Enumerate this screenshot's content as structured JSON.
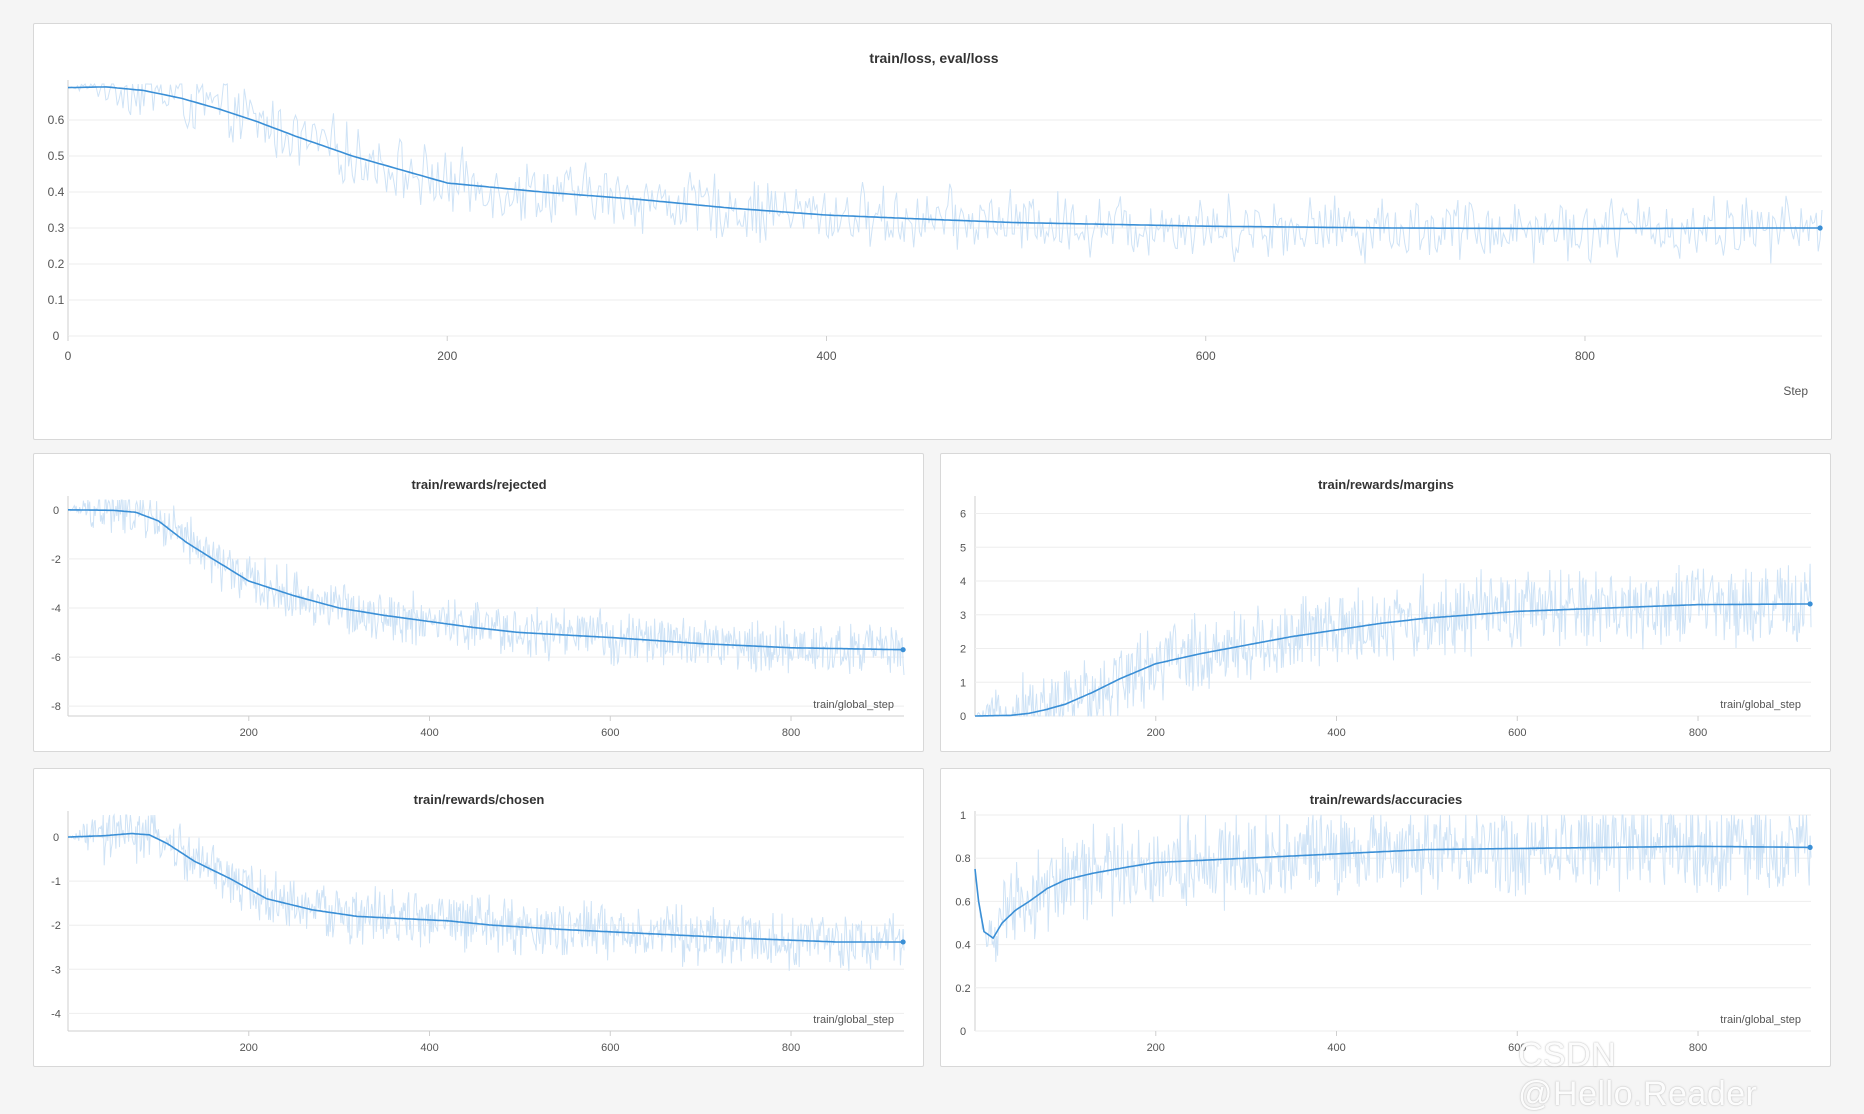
{
  "theme": {
    "smooth_color": "#3a8fd6",
    "raw_color": "#cfe3f6",
    "grid_color": "#eeeeee"
  },
  "watermark": "CSDN @Hello.Reader",
  "chart_data": [
    {
      "type": "line",
      "title": "train/loss, eval/loss",
      "xlabel": "Step",
      "ylabel": "",
      "xlim": [
        0,
        925
      ],
      "ylim": [
        0,
        0.7
      ],
      "xticks": [
        0,
        200,
        400,
        600,
        800
      ],
      "yticks": [
        0,
        0.1,
        0.2,
        0.3,
        0.4,
        0.5,
        0.6
      ],
      "ytick_labels": [
        "0",
        "0.1",
        "0.2",
        "0.3",
        "0.4",
        "0.5",
        "0.6"
      ],
      "noise": 0.075,
      "series": [
        {
          "role": "smoothed",
          "x": [
            0,
            20,
            40,
            60,
            80,
            100,
            120,
            150,
            180,
            200,
            250,
            300,
            350,
            400,
            450,
            500,
            600,
            700,
            800,
            880,
            925
          ],
          "y": [
            0.69,
            0.692,
            0.682,
            0.66,
            0.63,
            0.595,
            0.555,
            0.5,
            0.455,
            0.425,
            0.4,
            0.38,
            0.355,
            0.336,
            0.325,
            0.315,
            0.305,
            0.3,
            0.298,
            0.3,
            0.3
          ]
        },
        {
          "role": "raw",
          "x": [],
          "y": []
        }
      ]
    },
    {
      "type": "line",
      "title": "train/rewards/rejected",
      "xlabel": "train/global_step",
      "ylabel": "",
      "xlim": [
        0,
        925
      ],
      "ylim": [
        -8.4,
        0.4
      ],
      "xticks": [
        200,
        400,
        600,
        800
      ],
      "yticks": [
        0,
        -2,
        -4,
        -6,
        -8
      ],
      "ytick_labels": [
        "0",
        "-2",
        "-4",
        "-6",
        "-8"
      ],
      "noise": 0.9,
      "series": [
        {
          "role": "smoothed",
          "x": [
            0,
            50,
            75,
            100,
            130,
            160,
            200,
            250,
            300,
            350,
            400,
            450,
            500,
            600,
            700,
            800,
            925
          ],
          "y": [
            0,
            -0.02,
            -0.1,
            -0.45,
            -1.3,
            -2.0,
            -2.9,
            -3.5,
            -4.0,
            -4.3,
            -4.55,
            -4.8,
            -5.0,
            -5.2,
            -5.45,
            -5.62,
            -5.7
          ]
        },
        {
          "role": "raw",
          "x": [],
          "y": []
        }
      ]
    },
    {
      "type": "line",
      "title": "train/rewards/margins",
      "xlabel": "train/global_step",
      "ylabel": "",
      "xlim": [
        0,
        925
      ],
      "ylim": [
        0,
        6.4
      ],
      "xticks": [
        200,
        400,
        600,
        800
      ],
      "yticks": [
        0,
        1,
        2,
        3,
        4,
        5,
        6
      ],
      "ytick_labels": [
        "0",
        "1",
        "2",
        "3",
        "4",
        "5",
        "6"
      ],
      "noise": 1.0,
      "series": [
        {
          "role": "smoothed",
          "x": [
            0,
            40,
            60,
            80,
            100,
            130,
            160,
            200,
            250,
            300,
            350,
            400,
            450,
            500,
            600,
            700,
            800,
            925
          ],
          "y": [
            0,
            0.02,
            0.08,
            0.2,
            0.35,
            0.7,
            1.1,
            1.55,
            1.85,
            2.1,
            2.35,
            2.55,
            2.75,
            2.9,
            3.1,
            3.2,
            3.3,
            3.32
          ]
        },
        {
          "role": "raw",
          "x": [],
          "y": []
        }
      ]
    },
    {
      "type": "line",
      "title": "train/rewards/chosen",
      "xlabel": "train/global_step",
      "ylabel": "",
      "xlim": [
        0,
        925
      ],
      "ylim": [
        -4.4,
        0.5
      ],
      "xticks": [
        200,
        400,
        600,
        800
      ],
      "yticks": [
        0,
        -1,
        -2,
        -3,
        -4
      ],
      "ytick_labels": [
        "0",
        "-1",
        "-2",
        "-3",
        "-4"
      ],
      "noise": 0.55,
      "series": [
        {
          "role": "smoothed",
          "x": [
            0,
            40,
            70,
            90,
            110,
            140,
            180,
            220,
            270,
            320,
            370,
            420,
            470,
            550,
            650,
            750,
            850,
            925
          ],
          "y": [
            0,
            0.03,
            0.08,
            0.05,
            -0.15,
            -0.55,
            -0.95,
            -1.4,
            -1.65,
            -1.8,
            -1.85,
            -1.9,
            -2.0,
            -2.1,
            -2.2,
            -2.3,
            -2.38,
            -2.38
          ]
        },
        {
          "role": "raw",
          "x": [],
          "y": []
        }
      ]
    },
    {
      "type": "line",
      "title": "train/rewards/accuracies",
      "xlabel": "train/global_step",
      "ylabel": "",
      "xlim": [
        0,
        925
      ],
      "ylim": [
        0,
        1
      ],
      "xticks": [
        200,
        400,
        600,
        800
      ],
      "yticks": [
        0,
        0.2,
        0.4,
        0.6,
        0.8,
        1
      ],
      "ytick_labels": [
        "0",
        "0.2",
        "0.4",
        "0.6",
        "0.8",
        "1"
      ],
      "noise": 0.18,
      "series": [
        {
          "role": "smoothed",
          "x": [
            0,
            4,
            10,
            20,
            30,
            45,
            60,
            80,
            100,
            130,
            170,
            200,
            300,
            400,
            500,
            600,
            700,
            800,
            925
          ],
          "y": [
            0.75,
            0.6,
            0.46,
            0.43,
            0.5,
            0.56,
            0.6,
            0.66,
            0.7,
            0.73,
            0.76,
            0.78,
            0.8,
            0.82,
            0.84,
            0.845,
            0.85,
            0.855,
            0.85
          ]
        },
        {
          "role": "raw",
          "x": [],
          "y": []
        }
      ]
    }
  ]
}
